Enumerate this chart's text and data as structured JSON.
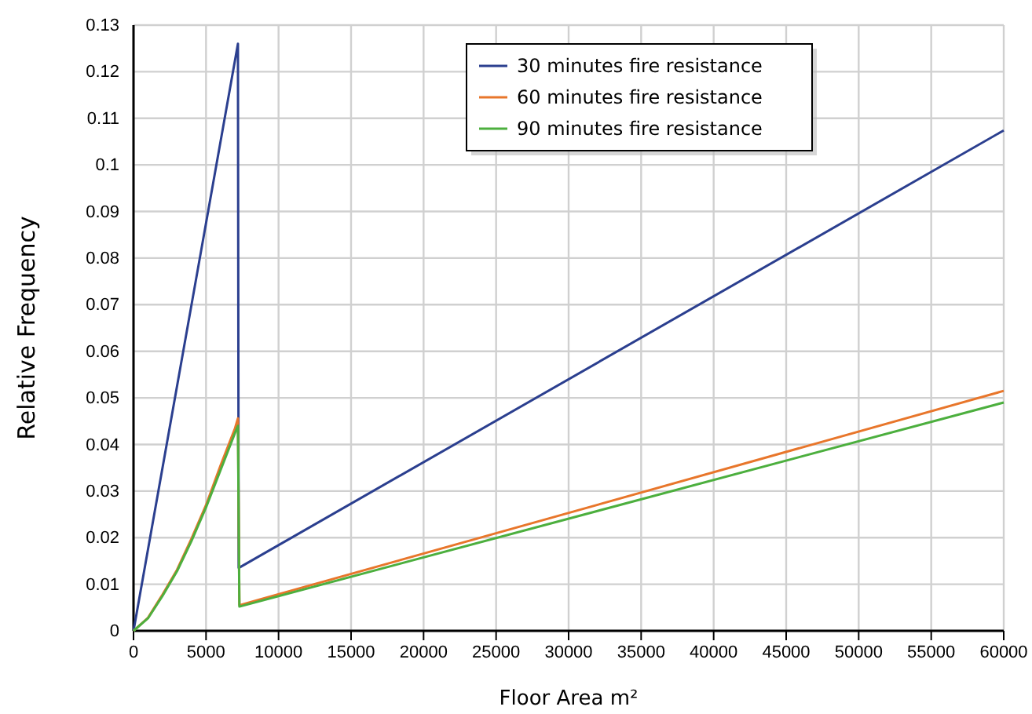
{
  "chart_data": {
    "type": "line",
    "xlabel": "Floor Area m²",
    "ylabel": "Relative Frequency",
    "xlim": [
      0,
      60000
    ],
    "xticks": [
      0,
      5000,
      10000,
      15000,
      20000,
      25000,
      30000,
      35000,
      40000,
      45000,
      50000,
      55000,
      60000
    ],
    "ylim": [
      0,
      0.13
    ],
    "yticks": [
      0,
      0.01,
      0.02,
      0.03,
      0.04,
      0.05,
      0.06,
      0.07,
      0.08,
      0.09,
      0.1,
      0.11,
      0.12,
      0.13
    ],
    "grid": true,
    "legend": "top",
    "marker": "none",
    "line_style": "solid",
    "series": [
      {
        "name": "30 minutes fire resistance",
        "color": "#2b3f8f",
        "x": [
          0,
          7200,
          7250,
          60000
        ],
        "values": [
          0,
          0.126,
          0.0135,
          0.1074
        ]
      },
      {
        "name": "60 minutes fire resistance",
        "color": "#e8762b",
        "x": [
          0,
          1000,
          2000,
          3000,
          4000,
          5000,
          6000,
          7000,
          7200,
          7300,
          60000
        ],
        "values": [
          0,
          0.0028,
          0.0078,
          0.0131,
          0.0198,
          0.027,
          0.0355,
          0.0435,
          0.0456,
          0.0055,
          0.0515
        ]
      },
      {
        "name": "90 minutes fire resistance",
        "color": "#4caf3e",
        "x": [
          0,
          1000,
          2000,
          3000,
          4000,
          5000,
          6000,
          7000,
          7200,
          7300,
          60000
        ],
        "values": [
          0,
          0.0027,
          0.0075,
          0.0128,
          0.0193,
          0.0265,
          0.0345,
          0.0425,
          0.044,
          0.0052,
          0.049
        ]
      }
    ]
  }
}
